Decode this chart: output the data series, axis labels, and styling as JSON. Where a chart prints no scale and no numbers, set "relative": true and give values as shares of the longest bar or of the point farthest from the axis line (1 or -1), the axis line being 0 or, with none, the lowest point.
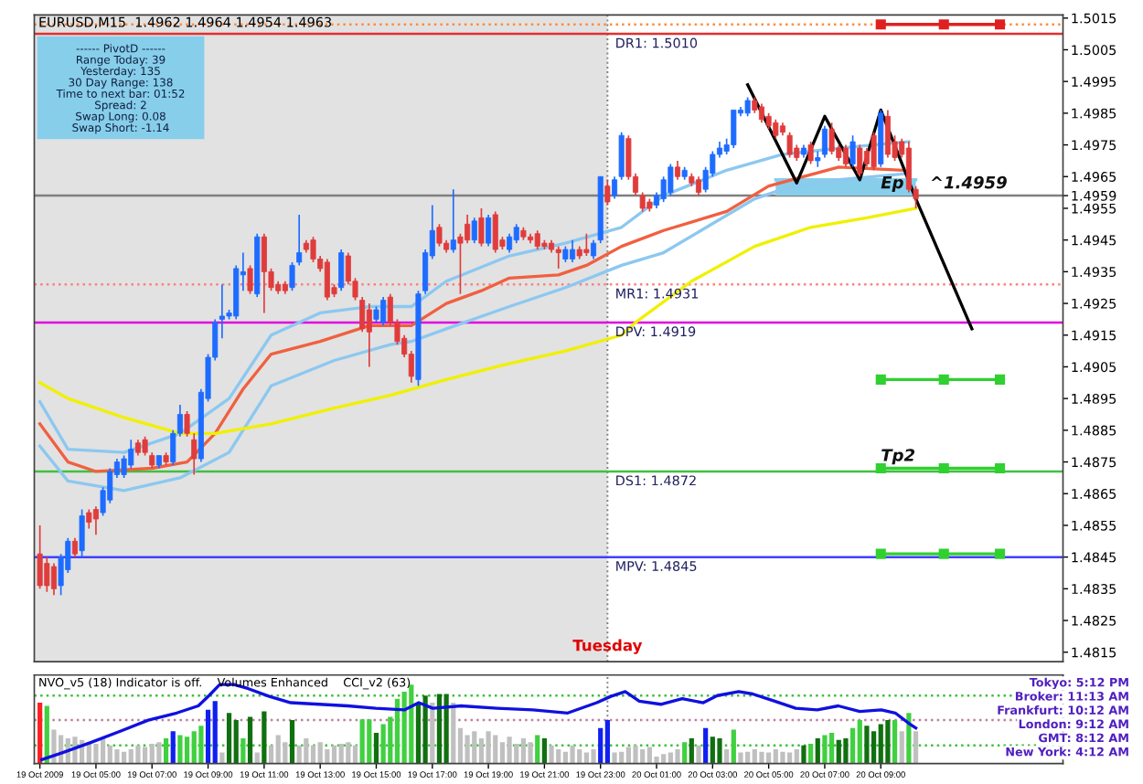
{
  "chart_data": [
    {
      "type": "candlestick",
      "title": "EURUSD,M15  1.4962 1.4964 1.4954 1.4963",
      "annotations": [
        "------ PivotD ------",
        "Range Today: 39",
        "Yesterday: 135",
        "30 Day Range: 138",
        "Time to next bar: 01:52",
        "Spread: 2",
        "Swap Long: 0.08",
        "Swap Short: -1.14",
        {
          "text": "Ep",
          "x": "2009-10-20T09:00",
          "y": 1.4959
        },
        {
          "text": "Tp2",
          "x": "2009-10-20T09:00",
          "y": 1.4873
        },
        {
          "text": "^1.4959",
          "x": "2009-10-20T10:45",
          "y": 1.4959
        }
      ],
      "xlim": [
        "2009-10-19T02:48",
        "2009-10-20T15:30"
      ],
      "ylim": [
        1.4812,
        1.5016
      ],
      "yticks": [
        1.4815,
        1.4825,
        1.4835,
        1.4845,
        1.4855,
        1.4865,
        1.4875,
        1.4885,
        1.4895,
        1.4905,
        1.4915,
        1.4925,
        1.4935,
        1.4945,
        1.4955,
        1.4959,
        1.4965,
        1.4975,
        1.4985,
        1.4995,
        1.5005,
        1.5015
      ],
      "tick_labels": "y",
      "bands": [
        {
          "axis": "x",
          "from": "2009-10-19T02:48",
          "to": "2009-10-19T23:15",
          "color": "#e2e2e2"
        }
      ],
      "ref_lines": [
        {
          "axis": "x",
          "value": "2009-10-19T23:15",
          "label": "Tuesday",
          "color": "#808080",
          "line_style": "dotted"
        },
        {
          "axis": "y",
          "value": 1.5013,
          "color": "#ff8c40",
          "line_style": "dotted"
        },
        {
          "axis": "y",
          "value": 1.501,
          "label": "DR1: 1.5010",
          "color": "#e03030"
        },
        {
          "axis": "y",
          "value": 1.4959,
          "color": "#808080"
        },
        {
          "axis": "y",
          "value": 1.4931,
          "label": "MR1: 1.4931",
          "color": "#ff8080",
          "line_style": "dotted"
        },
        {
          "axis": "y",
          "value": 1.4919,
          "label": "DPV: 1.4919",
          "color": "#e000e0"
        },
        {
          "axis": "y",
          "value": 1.4872,
          "label": "DS1: 1.4872",
          "color": "#40c040"
        },
        {
          "axis": "y",
          "value": 1.4845,
          "label": "MPV: 1.4845",
          "color": "#4040ff"
        }
      ],
      "series": [
        {
          "type": "line",
          "color": "#87ceeb",
          "x": [
            "2009-10-20T05:15",
            "2009-10-20T10:15"
          ],
          "values": [
            1.4964,
            1.4964
          ],
          "lower": [
            1.4959,
            1.4959
          ],
          "upper": [
            1.4964,
            1.4964
          ]
        },
        {
          "type": "line",
          "color": "#8cc8f0",
          "x": [
            "2009-10-19T03:00",
            "2009-10-19T04:00",
            "2009-10-19T06:00",
            "2009-10-19T08:00",
            "2009-10-19T09:45",
            "2009-10-19T11:15",
            "2009-10-19T13:00",
            "2009-10-19T14:45",
            "2009-10-19T16:15",
            "2009-10-19T17:30",
            "2009-10-19T19:45",
            "2009-10-19T21:45",
            "2009-10-19T23:45",
            "2009-10-20T01:15",
            "2009-10-20T03:30",
            "2009-10-20T05:30",
            "2009-10-20T07:30",
            "2009-10-20T10:00"
          ],
          "values": [
            1.4894,
            1.4879,
            1.4878,
            1.4884,
            1.4895,
            1.4915,
            1.4922,
            1.4924,
            1.4924,
            1.4932,
            1.494,
            1.4944,
            1.4949,
            1.4959,
            1.4967,
            1.4972,
            1.4974,
            1.4976
          ]
        },
        {
          "type": "line",
          "color": "#8cc8f0",
          "x": [
            "2009-10-19T03:00",
            "2009-10-19T04:00",
            "2009-10-19T06:00",
            "2009-10-19T08:00",
            "2009-10-19T09:45",
            "2009-10-19T11:15",
            "2009-10-19T13:30",
            "2009-10-19T15:30",
            "2009-10-19T16:15",
            "2009-10-19T17:30",
            "2009-10-19T19:45",
            "2009-10-19T21:45",
            "2009-10-19T23:45",
            "2009-10-20T01:15",
            "2009-10-20T04:30",
            "2009-10-20T05:30",
            "2009-10-20T07:30",
            "2009-10-20T10:00"
          ],
          "values": [
            1.488,
            1.4869,
            1.4866,
            1.487,
            1.4878,
            1.4899,
            1.4907,
            1.4912,
            1.4913,
            1.4917,
            1.4924,
            1.493,
            1.4937,
            1.4941,
            1.4958,
            1.4961,
            1.4964,
            1.4966
          ]
        },
        {
          "type": "line",
          "color": "#f06040",
          "x": [
            "2009-10-19T03:00",
            "2009-10-19T04:00",
            "2009-10-19T05:00",
            "2009-10-19T07:00",
            "2009-10-19T08:15",
            "2009-10-19T09:15",
            "2009-10-19T10:15",
            "2009-10-19T11:15",
            "2009-10-19T13:00",
            "2009-10-19T14:45",
            "2009-10-19T16:15",
            "2009-10-19T17:30",
            "2009-10-19T18:45",
            "2009-10-19T19:45",
            "2009-10-19T21:30",
            "2009-10-19T22:30",
            "2009-10-19T23:45",
            "2009-10-20T01:15",
            "2009-10-20T03:30",
            "2009-10-20T05:00",
            "2009-10-20T07:30",
            "2009-10-20T09:45"
          ],
          "values": [
            1.4887,
            1.4875,
            1.4872,
            1.4873,
            1.4875,
            1.4884,
            1.4898,
            1.4909,
            1.4913,
            1.4918,
            1.4918,
            1.4925,
            1.4929,
            1.4933,
            1.4934,
            1.4937,
            1.4943,
            1.4948,
            1.4954,
            1.4962,
            1.4968,
            1.4967
          ]
        },
        {
          "type": "line",
          "color": "#f0f000",
          "x": [
            "2009-10-19T03:00",
            "2009-10-19T04:00",
            "2009-10-19T06:00",
            "2009-10-19T08:00",
            "2009-10-19T09:15",
            "2009-10-19T11:15",
            "2009-10-19T13:30",
            "2009-10-19T15:30",
            "2009-10-19T17:30",
            "2009-10-19T19:45",
            "2009-10-19T21:45",
            "2009-10-19T23:45",
            "2009-10-20T00:15",
            "2009-10-20T02:15",
            "2009-10-20T04:30",
            "2009-10-20T06:30",
            "2009-10-20T08:30",
            "2009-10-20T10:15"
          ],
          "values": [
            1.49,
            1.4895,
            1.4889,
            1.4884,
            1.4884,
            1.4887,
            1.4892,
            1.4896,
            1.4901,
            1.4906,
            1.491,
            1.4915,
            1.4919,
            1.4932,
            1.4943,
            1.4949,
            1.4952,
            1.4955
          ]
        },
        {
          "type": "line",
          "color": "#000000",
          "x": [
            "2009-10-20T04:15",
            "2009-10-20T06:00",
            "2009-10-20T07:00",
            "2009-10-20T08:15",
            "2009-10-20T09:00",
            "2009-10-20T10:15",
            "2009-10-20T12:15"
          ],
          "values": [
            1.4994,
            1.4963,
            1.4984,
            1.4964,
            1.4986,
            1.4958,
            1.4917
          ]
        },
        {
          "type": "line",
          "color": "#e02020",
          "marker": "square",
          "x": [
            "2009-10-20T09:00",
            "2009-10-20T11:15",
            "2009-10-20T13:15"
          ],
          "values": [
            1.5013,
            1.5013,
            1.5013
          ]
        },
        {
          "type": "line",
          "color": "#30d030",
          "marker": "square",
          "x": [
            "2009-10-20T09:00",
            "2009-10-20T11:15",
            "2009-10-20T13:15"
          ],
          "values": [
            1.4901,
            1.4901,
            1.4901
          ]
        },
        {
          "type": "line",
          "color": "#30d030",
          "marker": "square",
          "x": [
            "2009-10-20T09:00",
            "2009-10-20T11:15",
            "2009-10-20T13:15"
          ],
          "values": [
            1.4873,
            1.4873,
            1.4873
          ]
        },
        {
          "type": "line",
          "color": "#30d030",
          "marker": "square",
          "x": [
            "2009-10-20T09:00",
            "2009-10-20T11:15",
            "2009-10-20T13:15"
          ],
          "values": [
            1.4846,
            1.4846,
            1.4846
          ]
        },
        {
          "color": "#1e6cff",
          "x": [
            "2009-10-19T03:45",
            "2009-10-19T04:00",
            "2009-10-19T04:30",
            "2009-10-19T05:15",
            "2009-10-19T05:30",
            "2009-10-19T05:45",
            "2009-10-19T06:00",
            "2009-10-19T06:15",
            "2009-10-19T07:15",
            "2009-10-19T07:45",
            "2009-10-19T08:00",
            "2009-10-19T08:45",
            "2009-10-19T09:00",
            "2009-10-19T09:15",
            "2009-10-19T09:30",
            "2009-10-19T09:45",
            "2009-10-19T10:00",
            "2009-10-19T10:15",
            "2009-10-19T10:45",
            "2009-10-19T12:00",
            "2009-10-19T12:15",
            "2009-10-19T13:45",
            "2009-10-19T15:00",
            "2009-10-19T15:15",
            "2009-10-19T16:30",
            "2009-10-19T16:45",
            "2009-10-19T17:00",
            "2009-10-19T17:45",
            "2009-10-19T18:30",
            "2009-10-19T19:00",
            "2009-10-19T19:45",
            "2009-10-19T20:00",
            "2009-10-19T21:45",
            "2009-10-19T22:00",
            "2009-10-19T22:45",
            "2009-10-19T23:00",
            "2009-10-19T23:30",
            "2009-10-19T23:45",
            "2009-10-20T01:00",
            "2009-10-20T01:15",
            "2009-10-20T01:30",
            "2009-10-20T02:00",
            "2009-10-20T02:45",
            "2009-10-20T03:00",
            "2009-10-20T03:15",
            "2009-10-20T03:30",
            "2009-10-20T03:45",
            "2009-10-20T04:00",
            "2009-10-20T04:15",
            "2009-10-20T06:15",
            "2009-10-20T06:45",
            "2009-10-20T07:00",
            "2009-10-20T08:00",
            "2009-10-20T09:00"
          ],
          "ohlc": [
            [
              1.4836,
              1.4846,
              1.4833,
              1.4845
            ],
            [
              1.4841,
              1.4851,
              1.484,
              1.485
            ],
            [
              1.4847,
              1.486,
              1.4845,
              1.4858
            ],
            [
              1.4859,
              1.4867,
              1.4858,
              1.4866
            ],
            [
              1.4863,
              1.4873,
              1.4862,
              1.4872
            ],
            [
              1.4871,
              1.4876,
              1.487,
              1.4875
            ],
            [
              1.4871,
              1.4877,
              1.487,
              1.4876
            ],
            [
              1.4874,
              1.4882,
              1.4873,
              1.4879
            ],
            [
              1.4874,
              1.4877,
              1.4873,
              1.4877
            ],
            [
              1.4875,
              1.4885,
              1.4874,
              1.4884
            ],
            [
              1.4884,
              1.4893,
              1.4883,
              1.489
            ],
            [
              1.4876,
              1.4898,
              1.4875,
              1.4897
            ],
            [
              1.4895,
              1.4909,
              1.4894,
              1.4908
            ],
            [
              1.4908,
              1.492,
              1.4907,
              1.4919
            ],
            [
              1.492,
              1.4931,
              1.4914,
              1.4921
            ],
            [
              1.4921,
              1.4923,
              1.492,
              1.4922
            ],
            [
              1.4921,
              1.4937,
              1.492,
              1.4936
            ],
            [
              1.4934,
              1.4941,
              1.4929,
              1.4935
            ],
            [
              1.4928,
              1.4947,
              1.4927,
              1.4946
            ],
            [
              1.493,
              1.4938,
              1.4929,
              1.4937
            ],
            [
              1.4938,
              1.4953,
              1.4937,
              1.4941
            ],
            [
              1.493,
              1.4942,
              1.4929,
              1.4941
            ],
            [
              1.492,
              1.4924,
              1.4919,
              1.4923
            ],
            [
              1.4919,
              1.4927,
              1.4918,
              1.4926
            ],
            [
              1.4901,
              1.4929,
              1.4899,
              1.4928
            ],
            [
              1.4929,
              1.4942,
              1.4928,
              1.4941
            ],
            [
              1.494,
              1.4956,
              1.4939,
              1.4948
            ],
            [
              1.4942,
              1.4961,
              1.4941,
              1.4945
            ],
            [
              1.4945,
              1.4952,
              1.4944,
              1.4951
            ],
            [
              1.4944,
              1.4953,
              1.4943,
              1.4952
            ],
            [
              1.4942,
              1.4947,
              1.4941,
              1.4946
            ],
            [
              1.4945,
              1.495,
              1.4944,
              1.4949
            ],
            [
              1.4939,
              1.4943,
              1.4938,
              1.4942
            ],
            [
              1.4939,
              1.4945,
              1.4938,
              1.4942
            ],
            [
              1.494,
              1.4945,
              1.4939,
              1.4944
            ],
            [
              1.4945,
              1.4965,
              1.4944,
              1.4965
            ],
            [
              1.4959,
              1.4965,
              1.4958,
              1.4964
            ],
            [
              1.4965,
              1.4979,
              1.4964,
              1.4978
            ],
            [
              1.4956,
              1.496,
              1.4955,
              1.4959
            ],
            [
              1.4958,
              1.4965,
              1.4957,
              1.4964
            ],
            [
              1.496,
              1.4969,
              1.4959,
              1.4968
            ],
            [
              1.4965,
              1.4968,
              1.4964,
              1.4967
            ],
            [
              1.4961,
              1.4968,
              1.496,
              1.4967
            ],
            [
              1.4966,
              1.4973,
              1.4965,
              1.4972
            ],
            [
              1.4972,
              1.4976,
              1.4971,
              1.4974
            ],
            [
              1.4973,
              1.4977,
              1.4972,
              1.4975
            ],
            [
              1.4975,
              1.4986,
              1.4974,
              1.4986
            ],
            [
              1.4985,
              1.4987,
              1.4984,
              1.4986
            ],
            [
              1.4985,
              1.499,
              1.4984,
              1.4989
            ],
            [
              1.4972,
              1.4975,
              1.4971,
              1.4974
            ],
            [
              1.497,
              1.4973,
              1.4968,
              1.4971
            ],
            [
              1.4972,
              1.4981,
              1.4971,
              1.498
            ],
            [
              1.4969,
              1.4978,
              1.4968,
              1.4976
            ],
            [
              1.4969,
              1.4986,
              1.4968,
              1.4985
            ]
          ]
        },
        {
          "color": "#e03c3c",
          "x": [
            "2009-10-19T03:00",
            "2009-10-19T03:15",
            "2009-10-19T03:30",
            "2009-10-19T04:15",
            "2009-10-19T04:45",
            "2009-10-19T05:00",
            "2009-10-19T06:30",
            "2009-10-19T06:45",
            "2009-10-19T07:00",
            "2009-10-19T07:30",
            "2009-10-19T08:15",
            "2009-10-19T08:30",
            "2009-10-19T10:30",
            "2009-10-19T11:00",
            "2009-10-19T11:15",
            "2009-10-19T11:30",
            "2009-10-19T11:45",
            "2009-10-19T12:30",
            "2009-10-19T12:45",
            "2009-10-19T13:00",
            "2009-10-19T13:15",
            "2009-10-19T13:30",
            "2009-10-19T14:00",
            "2009-10-19T14:15",
            "2009-10-19T14:30",
            "2009-10-19T14:45",
            "2009-10-19T15:30",
            "2009-10-19T15:45",
            "2009-10-19T16:00",
            "2009-10-19T16:15",
            "2009-10-19T17:15",
            "2009-10-19T17:30",
            "2009-10-19T18:00",
            "2009-10-19T18:15",
            "2009-10-19T18:45",
            "2009-10-19T19:15",
            "2009-10-19T19:30",
            "2009-10-19T20:15",
            "2009-10-19T20:30",
            "2009-10-19T20:45",
            "2009-10-19T21:00",
            "2009-10-19T21:15",
            "2009-10-19T21:30",
            "2009-10-19T22:15",
            "2009-10-19T22:30",
            "2009-10-19T23:15",
            "2009-10-20T00:00",
            "2009-10-20T00:15",
            "2009-10-20T00:30",
            "2009-10-20T00:45",
            "2009-10-20T01:45",
            "2009-10-20T02:15",
            "2009-10-20T02:30",
            "2009-10-20T04:30",
            "2009-10-20T04:45",
            "2009-10-20T05:00",
            "2009-10-20T05:15",
            "2009-10-20T05:30",
            "2009-10-20T05:45",
            "2009-10-20T06:00",
            "2009-10-20T06:30",
            "2009-10-20T07:15",
            "2009-10-20T07:30",
            "2009-10-20T07:45",
            "2009-10-20T08:15",
            "2009-10-20T08:30",
            "2009-10-20T08:45",
            "2009-10-20T09:15",
            "2009-10-20T09:30",
            "2009-10-20T09:45",
            "2009-10-20T10:00",
            "2009-10-20T10:15"
          ],
          "ohlc": [
            [
              1.4846,
              1.4855,
              1.4835,
              1.4836
            ],
            [
              1.4843,
              1.4845,
              1.4834,
              1.4836
            ],
            [
              1.4842,
              1.4843,
              1.4833,
              1.4835
            ],
            [
              1.485,
              1.4851,
              1.4845,
              1.4846
            ],
            [
              1.4859,
              1.486,
              1.4854,
              1.4856
            ],
            [
              1.486,
              1.4861,
              1.4852,
              1.4857
            ],
            [
              1.4881,
              1.4882,
              1.4877,
              1.4878
            ],
            [
              1.4882,
              1.4883,
              1.4877,
              1.4878
            ],
            [
              1.4877,
              1.4878,
              1.4873,
              1.4874
            ],
            [
              1.4877,
              1.4878,
              1.4874,
              1.4875
            ],
            [
              1.489,
              1.4891,
              1.4883,
              1.4884
            ],
            [
              1.4882,
              1.4884,
              1.4871,
              1.4876
            ],
            [
              1.4936,
              1.4937,
              1.4928,
              1.4929
            ],
            [
              1.4946,
              1.4947,
              1.4922,
              1.4935
            ],
            [
              1.4935,
              1.4936,
              1.4929,
              1.493
            ],
            [
              1.4931,
              1.4932,
              1.4928,
              1.4929
            ],
            [
              1.4931,
              1.4932,
              1.4928,
              1.4929
            ],
            [
              1.4944,
              1.4945,
              1.4941,
              1.4942
            ],
            [
              1.4945,
              1.4946,
              1.4938,
              1.4939
            ],
            [
              1.4939,
              1.494,
              1.4935,
              1.4936
            ],
            [
              1.4938,
              1.4939,
              1.4926,
              1.4927
            ],
            [
              1.493,
              1.4931,
              1.4927,
              1.4928
            ],
            [
              1.494,
              1.4941,
              1.4931,
              1.4932
            ],
            [
              1.4932,
              1.4933,
              1.4926,
              1.4927
            ],
            [
              1.4926,
              1.4927,
              1.4916,
              1.4917
            ],
            [
              1.4923,
              1.4925,
              1.4905,
              1.4916
            ],
            [
              1.4927,
              1.4928,
              1.4918,
              1.4919
            ],
            [
              1.4919,
              1.492,
              1.4912,
              1.4913
            ],
            [
              1.4914,
              1.4915,
              1.4908,
              1.4909
            ],
            [
              1.4909,
              1.491,
              1.49,
              1.4902
            ],
            [
              1.4949,
              1.495,
              1.4943,
              1.4944
            ],
            [
              1.4944,
              1.4945,
              1.4941,
              1.4942
            ],
            [
              1.4946,
              1.4947,
              1.4928,
              1.4944
            ],
            [
              1.495,
              1.4953,
              1.4944,
              1.4945
            ],
            [
              1.4952,
              1.4955,
              1.4943,
              1.4944
            ],
            [
              1.4953,
              1.4954,
              1.4941,
              1.4942
            ],
            [
              1.4945,
              1.4946,
              1.4942,
              1.4943
            ],
            [
              1.4948,
              1.4949,
              1.4945,
              1.4946
            ],
            [
              1.4946,
              1.4947,
              1.4944,
              1.4945
            ],
            [
              1.4947,
              1.4948,
              1.4942,
              1.4943
            ],
            [
              1.4944,
              1.4945,
              1.4942,
              1.4943
            ],
            [
              1.4944,
              1.4945,
              1.4941,
              1.4942
            ],
            [
              1.4942,
              1.4943,
              1.4936,
              1.4941
            ],
            [
              1.4942,
              1.4943,
              1.4939,
              1.494
            ],
            [
              1.4942,
              1.4947,
              1.494,
              1.4941
            ],
            [
              1.4962,
              1.4964,
              1.4956,
              1.4957
            ],
            [
              1.4977,
              1.4978,
              1.4964,
              1.4965
            ],
            [
              1.4965,
              1.4966,
              1.4959,
              1.496
            ],
            [
              1.4959,
              1.496,
              1.4954,
              1.4955
            ],
            [
              1.4957,
              1.4958,
              1.4954,
              1.4955
            ],
            [
              1.4968,
              1.497,
              1.4964,
              1.4965
            ],
            [
              1.4965,
              1.4966,
              1.4962,
              1.4963
            ],
            [
              1.4964,
              1.4965,
              1.4959,
              1.496
            ],
            [
              1.4989,
              1.499,
              1.4985,
              1.4986
            ],
            [
              1.4987,
              1.4988,
              1.4982,
              1.4983
            ],
            [
              1.4984,
              1.4985,
              1.498,
              1.4981
            ],
            [
              1.4982,
              1.4983,
              1.4977,
              1.4978
            ],
            [
              1.4981,
              1.4982,
              1.4978,
              1.4979
            ],
            [
              1.4978,
              1.4979,
              1.4971,
              1.4972
            ],
            [
              1.4974,
              1.4975,
              1.497,
              1.4971
            ],
            [
              1.4975,
              1.4976,
              1.4969,
              1.497
            ],
            [
              1.498,
              1.4982,
              1.4972,
              1.4973
            ],
            [
              1.4974,
              1.4975,
              1.497,
              1.4971
            ],
            [
              1.4974,
              1.4975,
              1.4968,
              1.4969
            ],
            [
              1.4974,
              1.4975,
              1.4965,
              1.4966
            ],
            [
              1.4973,
              1.4974,
              1.4968,
              1.4969
            ],
            [
              1.4978,
              1.4979,
              1.4967,
              1.4968
            ],
            [
              1.4984,
              1.4986,
              1.4971,
              1.4972
            ],
            [
              1.4976,
              1.4978,
              1.497,
              1.4971
            ],
            [
              1.4976,
              1.4977,
              1.4971,
              1.4972
            ],
            [
              1.4974,
              1.4976,
              1.496,
              1.4961
            ],
            [
              1.4961,
              1.4962,
              1.4955,
              1.4958
            ]
          ]
        }
      ]
    },
    {
      "type": "bar",
      "relative": true,
      "title": "NVO_v5 (18) Indicator is off.    Volumes Enhanced    CCI_v2 (63)",
      "annotations": [
        "Tokyo: 5:12 PM",
        "Broker: 11:13 AM",
        "Frankfurt: 10:12 AM",
        "London: 9:12 AM",
        "GMT: 8:12 AM",
        "New York: 4:12 AM"
      ],
      "xlim": [
        "2009-10-19T02:48",
        "2009-10-20T15:30"
      ],
      "xticks": [
        {
          "value": "2009-10-19T03:00",
          "label": "19 Oct 2009"
        },
        {
          "value": "2009-10-19T05:00",
          "label": "19 Oct 05:00"
        },
        {
          "value": "2009-10-19T07:00",
          "label": "19 Oct 07:00"
        },
        {
          "value": "2009-10-19T09:00",
          "label": "19 Oct 09:00"
        },
        {
          "value": "2009-10-19T11:00",
          "label": "19 Oct 11:00"
        },
        {
          "value": "2009-10-19T13:00",
          "label": "19 Oct 13:00"
        },
        {
          "value": "2009-10-19T15:00",
          "label": "19 Oct 15:00"
        },
        {
          "value": "2009-10-19T17:00",
          "label": "19 Oct 17:00"
        },
        {
          "value": "2009-10-19T19:00",
          "label": "19 Oct 19:00"
        },
        {
          "value": "2009-10-19T21:00",
          "label": "19 Oct 21:00"
        },
        {
          "value": "2009-10-19T23:00",
          "label": "19 Oct 23:00"
        },
        {
          "value": "2009-10-20T01:00",
          "label": "20 Oct 01:00"
        },
        {
          "value": "2009-10-20T03:00",
          "label": "20 Oct 03:00"
        },
        {
          "value": "2009-10-20T05:00",
          "label": "20 Oct 05:00"
        },
        {
          "value": "2009-10-20T07:00",
          "label": "20 Oct 07:00"
        },
        {
          "value": "2009-10-20T09:00",
          "label": "20 Oct 09:00"
        }
      ],
      "tick_labels": "x",
      "ref_lines": [
        {
          "axis": "y",
          "value": 0.86,
          "color": "#40c040",
          "line_style": "dotted"
        },
        {
          "axis": "y",
          "value": 0.55,
          "color": "#c080a0",
          "line_style": "dotted"
        },
        {
          "axis": "y",
          "value": 0.23,
          "color": "#40c040",
          "line_style": "dotted"
        },
        {
          "axis": "x",
          "value": "2009-10-19T23:15",
          "color": "#808080",
          "line_style": "dotted"
        }
      ],
      "series": [
        {
          "color": "#ff2020",
          "x": [
            "2009-10-19T03:00"
          ],
          "values": [
            0.77
          ]
        },
        {
          "color": "#40d040",
          "x": [
            "2009-10-19T03:15",
            "2009-10-19T07:30",
            "2009-10-19T08:00",
            "2009-10-19T08:15",
            "2009-10-19T08:30",
            "2009-10-19T08:45",
            "2009-10-19T10:15",
            "2009-10-19T14:30",
            "2009-10-19T14:45",
            "2009-10-19T15:15",
            "2009-10-19T15:30",
            "2009-10-19T15:45",
            "2009-10-19T16:00",
            "2009-10-19T16:15",
            "2009-10-19T20:45",
            "2009-10-20T02:00",
            "2009-10-20T03:45",
            "2009-10-20T06:30",
            "2009-10-20T07:00",
            "2009-10-20T07:15",
            "2009-10-20T08:00",
            "2009-10-20T08:15",
            "2009-10-20T09:30",
            "2009-10-20T10:00"
          ],
          "values": [
            0.73,
            0.32,
            0.36,
            0.34,
            0.41,
            0.48,
            0.32,
            0.56,
            0.56,
            0.5,
            0.59,
            0.82,
            0.91,
            1.0,
            0.36,
            0.27,
            0.43,
            0.25,
            0.36,
            0.39,
            0.45,
            0.55,
            0.55,
            0.64
          ]
        },
        {
          "color": "#107010",
          "x": [
            "2009-10-19T09:45",
            "2009-10-19T10:00",
            "2009-10-19T10:30",
            "2009-10-19T11:00",
            "2009-10-19T12:00",
            "2009-10-19T15:00",
            "2009-10-19T16:30",
            "2009-10-19T16:45",
            "2009-10-19T17:15",
            "2009-10-19T17:30",
            "2009-10-19T21:00",
            "2009-10-20T02:15",
            "2009-10-20T03:00",
            "2009-10-20T03:15",
            "2009-10-20T06:15",
            "2009-10-20T06:45",
            "2009-10-20T07:30",
            "2009-10-20T07:45",
            "2009-10-20T08:30",
            "2009-10-20T08:45",
            "2009-10-20T09:00",
            "2009-10-20T09:15"
          ],
          "values": [
            0.64,
            0.55,
            0.59,
            0.66,
            0.55,
            0.39,
            0.77,
            0.86,
            0.88,
            0.88,
            0.32,
            0.32,
            0.34,
            0.32,
            0.23,
            0.32,
            0.3,
            0.32,
            0.48,
            0.41,
            0.5,
            0.55
          ]
        },
        {
          "color": "#1020f0",
          "x": [
            "2009-10-19T07:45",
            "2009-10-19T09:00",
            "2009-10-19T09:15",
            "2009-10-19T23:00",
            "2009-10-19T23:15",
            "2009-10-20T02:45"
          ],
          "values": [
            0.41,
            0.68,
            0.79,
            0.45,
            0.55,
            0.45
          ]
        },
        {
          "color": "#c0c0c0",
          "x": [
            "2009-10-19T03:30",
            "2009-10-19T03:45",
            "2009-10-19T04:00",
            "2009-10-19T04:15",
            "2009-10-19T04:30",
            "2009-10-19T04:45",
            "2009-10-19T05:00",
            "2009-10-19T05:15",
            "2009-10-19T05:30",
            "2009-10-19T05:45",
            "2009-10-19T06:00",
            "2009-10-19T06:15",
            "2009-10-19T06:30",
            "2009-10-19T06:45",
            "2009-10-19T07:00",
            "2009-10-19T07:15",
            "2009-10-19T09:30",
            "2009-10-19T10:45",
            "2009-10-19T11:15",
            "2009-10-19T11:30",
            "2009-10-19T11:45",
            "2009-10-19T12:15",
            "2009-10-19T12:30",
            "2009-10-19T12:45",
            "2009-10-19T13:00",
            "2009-10-19T13:15",
            "2009-10-19T13:30",
            "2009-10-19T13:45",
            "2009-10-19T14:00",
            "2009-10-19T14:15",
            "2009-10-19T17:00",
            "2009-10-19T17:45",
            "2009-10-19T18:00",
            "2009-10-19T18:15",
            "2009-10-19T18:30",
            "2009-10-19T18:45",
            "2009-10-19T19:00",
            "2009-10-19T19:15",
            "2009-10-19T19:30",
            "2009-10-19T19:45",
            "2009-10-19T20:00",
            "2009-10-19T20:15",
            "2009-10-19T20:30",
            "2009-10-19T21:15",
            "2009-10-19T21:30",
            "2009-10-19T21:45",
            "2009-10-19T22:00",
            "2009-10-19T22:15",
            "2009-10-19T22:30",
            "2009-10-19T22:45",
            "2009-10-19T23:30",
            "2009-10-19T23:45",
            "2009-10-20T00:00",
            "2009-10-20T00:15",
            "2009-10-20T00:30",
            "2009-10-20T00:45",
            "2009-10-20T01:00",
            "2009-10-20T01:15",
            "2009-10-20T01:30",
            "2009-10-20T01:45",
            "2009-10-20T02:30",
            "2009-10-20T03:30",
            "2009-10-20T04:00",
            "2009-10-20T04:15",
            "2009-10-20T04:30",
            "2009-10-20T04:45",
            "2009-10-20T05:00",
            "2009-10-20T05:15",
            "2009-10-20T05:30",
            "2009-10-20T05:45",
            "2009-10-20T06:00",
            "2009-10-20T09:45",
            "2009-10-20T10:15"
          ],
          "values": [
            0.43,
            0.36,
            0.32,
            0.34,
            0.3,
            0.27,
            0.25,
            0.32,
            0.23,
            0.18,
            0.15,
            0.18,
            0.23,
            0.21,
            0.25,
            0.27,
            0.14,
            0.14,
            0.23,
            0.36,
            0.27,
            0.23,
            0.32,
            0.23,
            0.27,
            0.18,
            0.23,
            0.25,
            0.27,
            0.23,
            0.77,
            0.77,
            0.45,
            0.36,
            0.41,
            0.32,
            0.41,
            0.36,
            0.27,
            0.34,
            0.25,
            0.32,
            0.27,
            0.23,
            0.18,
            0.15,
            0.23,
            0.18,
            0.14,
            0.18,
            0.14,
            0.15,
            0.21,
            0.23,
            0.18,
            0.21,
            0.09,
            0.12,
            0.14,
            0.18,
            0.23,
            0.18,
            0.14,
            0.15,
            0.18,
            0.15,
            0.14,
            0.18,
            0.15,
            0.14,
            0.18,
            0.41,
            0.41
          ]
        },
        {
          "type": "line",
          "color": "#1010e0",
          "x": [
            "2009-10-19T03:04",
            "2009-10-19T03:49",
            "2009-10-19T04:50",
            "2009-10-19T05:52",
            "2009-10-19T06:52",
            "2009-10-19T07:53",
            "2009-10-19T08:39",
            "2009-10-19T09:02",
            "2009-10-19T09:25",
            "2009-10-19T09:55",
            "2009-10-19T10:25",
            "2009-10-19T11:11",
            "2009-10-19T11:57",
            "2009-10-19T12:58",
            "2009-10-19T13:59",
            "2009-10-19T14:59",
            "2009-10-19T16:01",
            "2009-10-19T16:31",
            "2009-10-19T17:01",
            "2009-10-19T18:02",
            "2009-10-19T19:19",
            "2009-10-19T20:35",
            "2009-10-19T21:50",
            "2009-10-19T22:52",
            "2009-10-19T23:22",
            "2009-10-19T23:53",
            "2009-10-20T00:23",
            "2009-10-20T01:09",
            "2009-10-20T01:55",
            "2009-10-20T02:40",
            "2009-10-20T03:10",
            "2009-10-20T03:56",
            "2009-10-20T04:26",
            "2009-10-20T05:13",
            "2009-10-20T05:58",
            "2009-10-20T06:44",
            "2009-10-20T07:29",
            "2009-10-20T08:15",
            "2009-10-20T09:01",
            "2009-10-20T09:31",
            "2009-10-20T10:02",
            "2009-10-20T10:15"
          ],
          "values": [
            0.05,
            0.14,
            0.27,
            0.41,
            0.55,
            0.64,
            0.73,
            0.86,
            1.0,
            1.0,
            0.95,
            0.85,
            0.77,
            0.75,
            0.73,
            0.7,
            0.68,
            0.77,
            0.7,
            0.73,
            0.7,
            0.68,
            0.64,
            0.77,
            0.85,
            0.91,
            0.79,
            0.75,
            0.82,
            0.77,
            0.86,
            0.91,
            0.88,
            0.79,
            0.7,
            0.68,
            0.73,
            0.66,
            0.68,
            0.64,
            0.5,
            0.45
          ]
        }
      ]
    }
  ]
}
